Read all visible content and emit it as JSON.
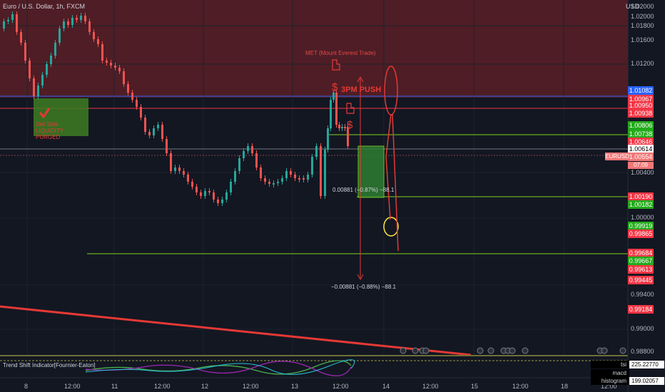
{
  "header": {
    "symbol_title": "Euro / U.S. Dollar, 1h, FXCM",
    "currency": "USD"
  },
  "colors": {
    "background": "#131722",
    "bull": "#26a69a",
    "bear": "#ef5350",
    "zone_red": "#5a1e26",
    "green_box": "#3e7d22",
    "blue_line": "#2962ff",
    "red_line": "#f23645",
    "green_line": "#7ed321"
  },
  "axis_prices": [
    "1.02000",
    "1.01800",
    "1.01600",
    "1.01200",
    "1.00400",
    "1.00000",
    "0.99400",
    "0.99000",
    "0.98800"
  ],
  "price_tags": [
    {
      "text": "1.01082",
      "color": "#2962ff"
    },
    {
      "text": "1.00967",
      "color": "#f23645"
    },
    {
      "text": "1.00950",
      "color": "#f23645"
    },
    {
      "text": "1.00938",
      "color": "#f23645"
    },
    {
      "text": "1.00806",
      "color": "#22ab1a"
    },
    {
      "text": "1.00738",
      "color": "#22ab1a"
    },
    {
      "text": "1.00646",
      "color": "#f23645"
    },
    {
      "text": "1.00614",
      "color": "#ffffff"
    },
    {
      "text": "1.00554",
      "color": "#f27777"
    },
    {
      "text": "1.00190",
      "color": "#f23645"
    },
    {
      "text": "1.00182",
      "color": "#22ab1a"
    },
    {
      "text": "0.99919",
      "color": "#22ab1a"
    },
    {
      "text": "0.99865",
      "color": "#f23645"
    },
    {
      "text": "0.99684",
      "color": "#f23645"
    },
    {
      "text": "0.99667",
      "color": "#22ab1a"
    },
    {
      "text": "0.99613",
      "color": "#f23645"
    },
    {
      "text": "0.99445",
      "color": "#f23645"
    },
    {
      "text": "0.99184",
      "color": "#f23645"
    }
  ],
  "eurusd_tag": "EURUSD",
  "countdown": "07:09",
  "time_labels": [
    "8",
    "12:00",
    "11",
    "12:00",
    "12",
    "12:00",
    "13",
    "12:00",
    "14",
    "12:00",
    "15",
    "12:00",
    "18",
    "12:00"
  ],
  "annotations": {
    "met": "MET (Mount Everest Trade)",
    "push": "3PM PUSH",
    "liquidity": "Sell Side LIQUIDITY PURGED",
    "measure_top": "0.00881 (−0.87%) −88.1",
    "measure_bottom": "−0.00881 (−0.88%) −88.1"
  },
  "indicator": {
    "name": "Trend Shift Indicator[Fournier-Eaton]",
    "tsi_label": "tsi",
    "tsi_value": "225.22770",
    "macd_label": "macd histogram",
    "macd_value": "199.02057"
  }
}
